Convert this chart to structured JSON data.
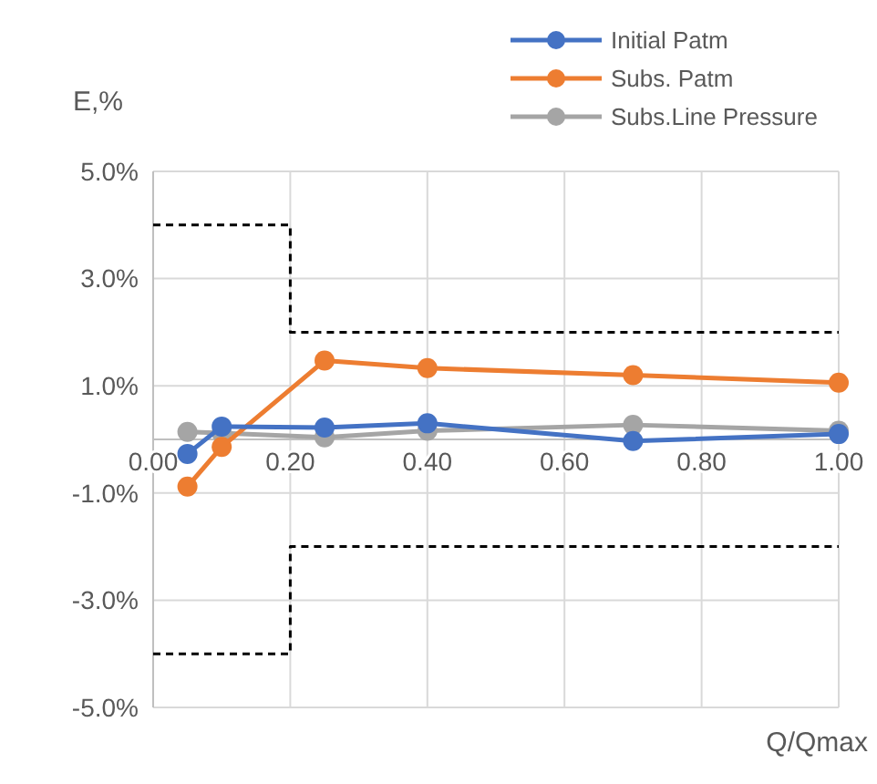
{
  "chart_data": {
    "type": "line",
    "xlabel": "Q/Qmax",
    "ylabel": "E,%",
    "x": [
      0.05,
      0.1,
      0.25,
      0.4,
      0.7,
      1.0
    ],
    "series": [
      {
        "name": "Initial Patm",
        "color": "#4472c4",
        "values": [
          -0.27,
          0.24,
          0.22,
          0.3,
          -0.03,
          0.1
        ]
      },
      {
        "name": "Subs. Patm",
        "color": "#ed7d31",
        "values": [
          -0.88,
          -0.14,
          1.47,
          1.33,
          1.2,
          1.06
        ]
      },
      {
        "name": "Subs.Line Pressure",
        "color": "#a5a5a5",
        "values": [
          0.14,
          0.12,
          0.04,
          0.16,
          0.27,
          0.16
        ]
      },
      {
        "color": "#000000",
        "x": [
          0,
          0.2,
          0.2,
          1.0
        ],
        "values": [
          4,
          4,
          2,
          2
        ],
        "line_style": "dashed",
        "marker": "none"
      },
      {
        "color": "#000000",
        "x": [
          0,
          0.2,
          0.2,
          1.0
        ],
        "values": [
          -4,
          -4,
          -2,
          -2
        ],
        "line_style": "dashed",
        "marker": "none"
      }
    ],
    "xlim": [
      0,
      1
    ],
    "xticks": [
      {
        "value": 0,
        "label": "0.00"
      },
      {
        "value": 0.2,
        "label": "0.20"
      },
      {
        "value": 0.4,
        "label": "0.40"
      },
      {
        "value": 0.6,
        "label": "0.60"
      },
      {
        "value": 0.8,
        "label": "0.80"
      },
      {
        "value": 1,
        "label": "1.00"
      }
    ],
    "ylim": [
      -5,
      5
    ],
    "yticks": [
      {
        "value": -5,
        "label": "-5.0%"
      },
      {
        "value": -3,
        "label": "-3.0%"
      },
      {
        "value": -1,
        "label": "-1.0%"
      },
      {
        "value": 1,
        "label": "1.0%"
      },
      {
        "value": 3,
        "label": "3.0%"
      },
      {
        "value": 5,
        "label": "5.0%"
      }
    ],
    "grid": true,
    "legend": "top right",
    "marker": "circle",
    "line_style": "solid"
  }
}
